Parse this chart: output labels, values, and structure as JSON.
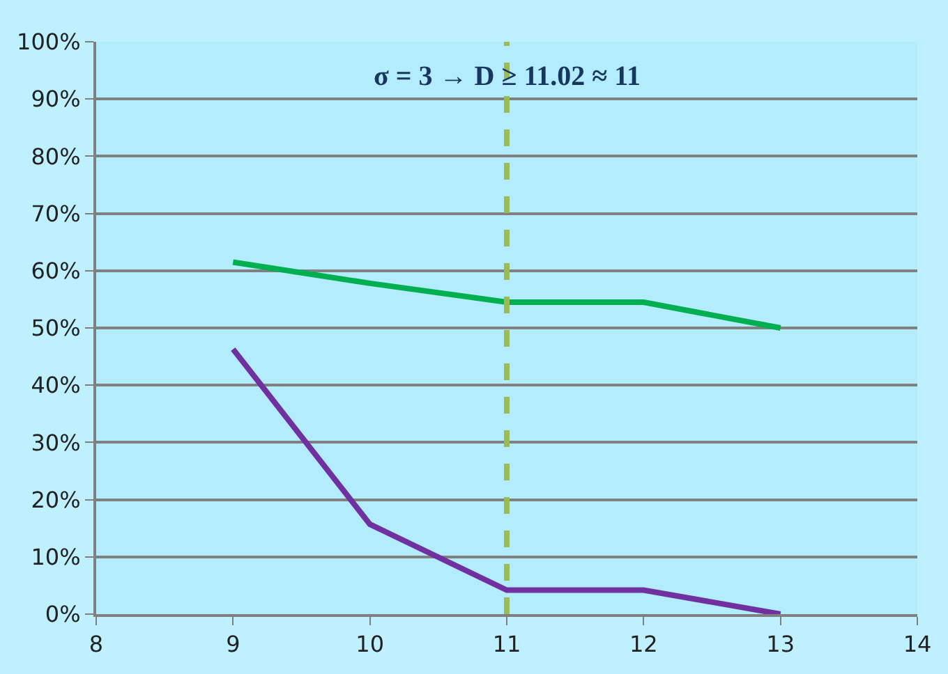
{
  "chart_data": {
    "type": "line",
    "x": [
      9,
      10,
      11,
      12,
      13
    ],
    "series": [
      {
        "color": "#00b050",
        "values": [
          61.5,
          57.8,
          54.5,
          54.5,
          50
        ]
      },
      {
        "color": "#7030a0",
        "values": [
          46.3,
          15.7,
          4.2,
          4.2,
          0
        ]
      }
    ],
    "xlim": [
      8,
      14
    ],
    "xticks": [
      8,
      9,
      10,
      11,
      12,
      13,
      14
    ],
    "ylim": [
      0,
      100
    ],
    "yticks": [
      {
        "value": 0,
        "label": "0%"
      },
      {
        "value": 10,
        "label": "10%"
      },
      {
        "value": 20,
        "label": "20%"
      },
      {
        "value": 30,
        "label": "30%"
      },
      {
        "value": 40,
        "label": "40%"
      },
      {
        "value": 50,
        "label": "50%"
      },
      {
        "value": 60,
        "label": "60%"
      },
      {
        "value": 70,
        "label": "70%"
      },
      {
        "value": 80,
        "label": "80%"
      },
      {
        "value": 90,
        "label": "90%"
      },
      {
        "value": 100,
        "label": "100%"
      }
    ],
    "grid": "y",
    "marker": "none",
    "line_style": "solid",
    "ref_lines": [
      {
        "axis": "x",
        "value": 11,
        "color": "#9bbb59",
        "line_style": "dashed"
      }
    ],
    "annotations": [
      "σ = 3 → D ≥ 11.02 ≈ 11"
    ]
  }
}
